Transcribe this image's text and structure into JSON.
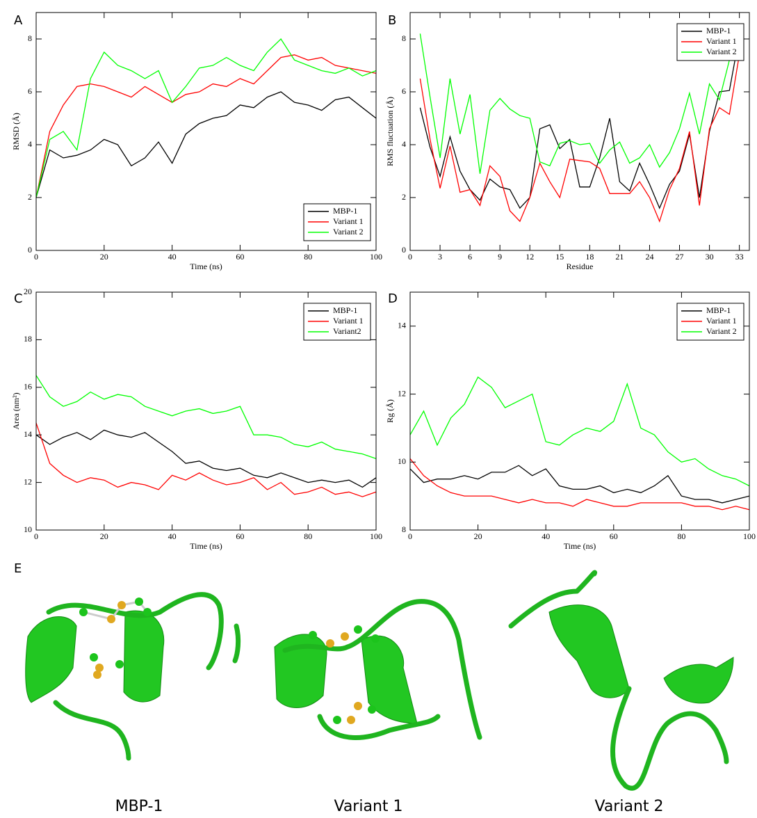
{
  "chart_data": [
    {
      "type": "line",
      "panel": "A",
      "xlabel": "Time (ns)",
      "ylabel": "RMSD (Å)",
      "xlim": [
        0,
        100
      ],
      "ylim": [
        0,
        9
      ],
      "xticks": [
        0,
        20,
        40,
        60,
        80,
        100
      ],
      "yticks": [
        0,
        2,
        4,
        6,
        8
      ],
      "legend": "lower right",
      "x": [
        0,
        4,
        8,
        12,
        16,
        20,
        24,
        28,
        32,
        36,
        40,
        44,
        48,
        52,
        56,
        60,
        64,
        68,
        72,
        76,
        80,
        84,
        88,
        92,
        96,
        100
      ],
      "series": [
        {
          "name": "MBP-1",
          "color": "#000000",
          "values": [
            2,
            3.8,
            3.5,
            3.6,
            3.8,
            4.2,
            4.0,
            3.2,
            3.5,
            4.1,
            3.3,
            4.4,
            4.8,
            5.0,
            5.1,
            5.5,
            5.4,
            5.8,
            6.0,
            5.6,
            5.5,
            5.3,
            5.7,
            5.8,
            5.4,
            5.0
          ]
        },
        {
          "name": "Variant 1",
          "color": "#ff0000",
          "values": [
            2,
            4.5,
            5.5,
            6.2,
            6.3,
            6.2,
            6.0,
            5.8,
            6.2,
            5.9,
            5.6,
            5.9,
            6.0,
            6.3,
            6.2,
            6.5,
            6.3,
            6.8,
            7.3,
            7.4,
            7.2,
            7.3,
            7.0,
            6.9,
            6.8,
            6.7
          ]
        },
        {
          "name": "Variant 2",
          "color": "#00ff00",
          "values": [
            2,
            4.2,
            4.5,
            3.8,
            6.5,
            7.5,
            7.0,
            6.8,
            6.5,
            6.8,
            5.6,
            6.2,
            6.9,
            7.0,
            7.3,
            7.0,
            6.8,
            7.5,
            8.0,
            7.2,
            7.0,
            6.8,
            6.7,
            6.9,
            6.6,
            6.8
          ]
        }
      ]
    },
    {
      "type": "line",
      "panel": "B",
      "xlabel": "Residue",
      "ylabel": "RMS fluctuation (Å)",
      "xlim": [
        0,
        34
      ],
      "ylim": [
        0,
        9
      ],
      "xticks": [
        0,
        3,
        6,
        9,
        12,
        15,
        18,
        21,
        24,
        27,
        30,
        33
      ],
      "yticks": [
        0,
        2,
        4,
        6,
        8
      ],
      "legend": "upper right",
      "x": [
        1,
        2,
        3,
        4,
        5,
        6,
        7,
        8,
        9,
        10,
        11,
        12,
        13,
        14,
        15,
        16,
        17,
        18,
        19,
        20,
        21,
        22,
        23,
        24,
        25,
        26,
        27,
        28,
        29,
        30,
        31,
        32,
        33
      ],
      "series": [
        {
          "name": "MBP-1",
          "color": "#000000",
          "values": [
            5.4,
            3.9,
            2.8,
            4.3,
            3.0,
            2.3,
            1.9,
            2.7,
            2.4,
            2.3,
            1.6,
            2.0,
            4.6,
            4.75,
            3.85,
            4.2,
            2.4,
            2.4,
            3.5,
            5.0,
            2.6,
            2.25,
            3.3,
            2.5,
            1.6,
            2.5,
            3.0,
            4.4,
            2.0,
            4.5,
            6.0,
            6.05,
            8.1
          ]
        },
        {
          "name": "Variant 1",
          "color": "#ff0000",
          "values": [
            6.5,
            4.2,
            2.35,
            3.95,
            2.2,
            2.3,
            1.7,
            3.2,
            2.8,
            1.5,
            1.1,
            2.0,
            3.3,
            2.6,
            2.0,
            3.45,
            3.4,
            3.35,
            3.1,
            2.15,
            2.15,
            2.15,
            2.6,
            2.0,
            1.1,
            2.3,
            3.1,
            4.5,
            1.7,
            4.6,
            5.4,
            5.15,
            7.4
          ]
        },
        {
          "name": "Variant 2",
          "color": "#00ff00",
          "values": [
            8.2,
            5.8,
            3.5,
            6.5,
            4.4,
            5.9,
            2.9,
            5.3,
            5.75,
            5.35,
            5.1,
            5.0,
            3.35,
            3.2,
            4.05,
            4.15,
            4.0,
            4.05,
            3.3,
            3.8,
            4.1,
            3.3,
            3.5,
            4.0,
            3.15,
            3.7,
            4.6,
            5.95,
            4.4,
            6.3,
            5.7,
            7.2,
            8.5
          ]
        }
      ]
    },
    {
      "type": "line",
      "panel": "C",
      "xlabel": "Time (ns)",
      "ylabel": "Area (nm²)",
      "xlim": [
        0,
        100
      ],
      "ylim": [
        10,
        20
      ],
      "xticks": [
        0,
        20,
        40,
        60,
        80,
        100
      ],
      "yticks": [
        10,
        12,
        14,
        16,
        18,
        20
      ],
      "legend": "upper right",
      "x": [
        0,
        4,
        8,
        12,
        16,
        20,
        24,
        28,
        32,
        36,
        40,
        44,
        48,
        52,
        56,
        60,
        64,
        68,
        72,
        76,
        80,
        84,
        88,
        92,
        96,
        100
      ],
      "series": [
        {
          "name": "MBP-1",
          "color": "#000000",
          "values": [
            14.0,
            13.6,
            13.9,
            14.1,
            13.8,
            14.2,
            14.0,
            13.9,
            14.1,
            13.7,
            13.3,
            12.8,
            12.9,
            12.6,
            12.5,
            12.6,
            12.3,
            12.2,
            12.4,
            12.2,
            12.0,
            12.1,
            12.0,
            12.1,
            11.8,
            12.2
          ]
        },
        {
          "name": "Variant 1",
          "color": "#ff0000",
          "values": [
            14.5,
            12.8,
            12.3,
            12.0,
            12.2,
            12.1,
            11.8,
            12.0,
            11.9,
            11.7,
            12.3,
            12.1,
            12.4,
            12.1,
            11.9,
            12.0,
            12.2,
            11.7,
            12.0,
            11.5,
            11.6,
            11.8,
            11.5,
            11.6,
            11.4,
            11.6
          ]
        },
        {
          "name": "Variant2",
          "color": "#00ff00",
          "values": [
            16.5,
            15.6,
            15.2,
            15.4,
            15.8,
            15.5,
            15.7,
            15.6,
            15.2,
            15.0,
            14.8,
            15.0,
            15.1,
            14.9,
            15.0,
            15.2,
            14.0,
            14.0,
            13.9,
            13.6,
            13.5,
            13.7,
            13.4,
            13.3,
            13.2,
            13.0
          ]
        }
      ]
    },
    {
      "type": "line",
      "panel": "D",
      "xlabel": "Time (ns)",
      "ylabel": "Rg (Å)",
      "xlim": [
        0,
        100
      ],
      "ylim": [
        8,
        15
      ],
      "xticks": [
        0,
        20,
        40,
        60,
        80,
        100
      ],
      "yticks": [
        8,
        10,
        12,
        14
      ],
      "legend": "upper right",
      "x": [
        0,
        4,
        8,
        12,
        16,
        20,
        24,
        28,
        32,
        36,
        40,
        44,
        48,
        52,
        56,
        60,
        64,
        68,
        72,
        76,
        80,
        84,
        88,
        92,
        96,
        100
      ],
      "series": [
        {
          "name": "MBP-1",
          "color": "#000000",
          "values": [
            9.8,
            9.4,
            9.5,
            9.5,
            9.6,
            9.5,
            9.7,
            9.7,
            9.9,
            9.6,
            9.8,
            9.3,
            9.2,
            9.2,
            9.3,
            9.1,
            9.2,
            9.1,
            9.3,
            9.6,
            9.0,
            8.9,
            8.9,
            8.8,
            8.9,
            9.0
          ]
        },
        {
          "name": "Variant 1",
          "color": "#ff0000",
          "values": [
            10.1,
            9.6,
            9.3,
            9.1,
            9.0,
            9.0,
            9.0,
            8.9,
            8.8,
            8.9,
            8.8,
            8.8,
            8.7,
            8.9,
            8.8,
            8.7,
            8.7,
            8.8,
            8.8,
            8.8,
            8.8,
            8.7,
            8.7,
            8.6,
            8.7,
            8.6
          ]
        },
        {
          "name": "Variant 2",
          "color": "#00ff00",
          "values": [
            10.8,
            11.5,
            10.5,
            11.3,
            11.7,
            12.5,
            12.2,
            11.6,
            11.8,
            12.0,
            10.6,
            10.5,
            10.8,
            11.0,
            10.9,
            11.2,
            12.3,
            11.0,
            10.8,
            10.3,
            10.0,
            10.1,
            9.8,
            9.6,
            9.5,
            9.3
          ]
        }
      ]
    }
  ],
  "structures": {
    "panel": "E",
    "captions": [
      "MBP-1",
      "Variant 1",
      "Variant 2"
    ]
  }
}
